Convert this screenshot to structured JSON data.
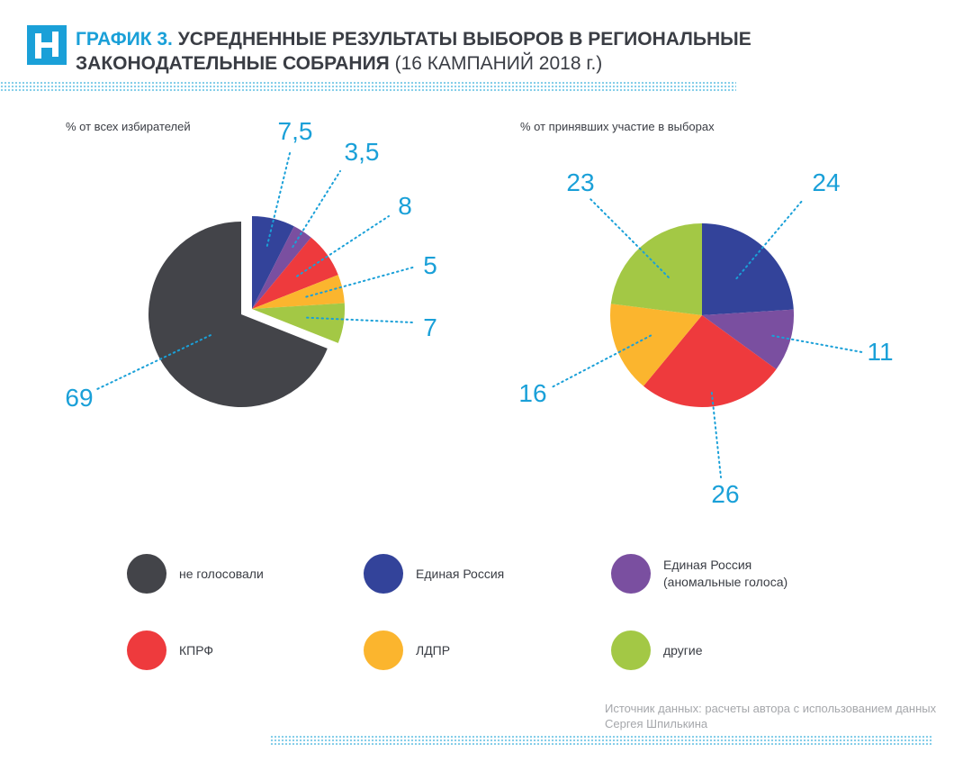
{
  "header": {
    "accent": "ГРАФИК 3.",
    "title": " УСРЕДНЕННЫЕ РЕЗУЛЬТАТЫ ВЫБОРОВ В РЕГИОНАЛЬНЫЕ ЗАКОНОДАТЕЛЬНЫЕ СОБРАНИЯ",
    "light": " (16 КАМПАНИЙ 2018 г.)"
  },
  "colors": {
    "accent": "#1aa0d8",
    "text": "#3a3d44",
    "none": "#434449",
    "er": "#33439a",
    "er_anom": "#7a4fa0",
    "kprf": "#ee3a3d",
    "ldpr": "#fbb52e",
    "other": "#a3c845"
  },
  "legend": [
    {
      "key": "none",
      "label": "не голосовали",
      "color": "#434449"
    },
    {
      "key": "er",
      "label": "Единая Россия",
      "color": "#33439a"
    },
    {
      "key": "er_anom",
      "label": "Единая Россия (аномальные голоса)",
      "color": "#7a4fa0"
    },
    {
      "key": "kprf",
      "label": "КПРФ",
      "color": "#ee3a3d"
    },
    {
      "key": "ldpr",
      "label": "ЛДПР",
      "color": "#fbb52e"
    },
    {
      "key": "other",
      "label": "другие",
      "color": "#a3c845"
    }
  ],
  "chart_data": [
    {
      "type": "pie",
      "title": "% от всех избирателей",
      "categories": [
        "не голосовали",
        "Единая Россия",
        "Единая Россия (аномальные голоса)",
        "КПРФ",
        "ЛДПР",
        "другие"
      ],
      "values": [
        69,
        7.5,
        3.5,
        8,
        5,
        7
      ],
      "labels": [
        "69",
        "7,5",
        "3,5",
        "8",
        "5",
        "7"
      ],
      "colors": [
        "#434449",
        "#33439a",
        "#7a4fa0",
        "#ee3a3d",
        "#fbb52e",
        "#a3c845"
      ],
      "exploded": "voters"
    },
    {
      "type": "pie",
      "title": "% от принявших участие в выборах",
      "categories": [
        "Единая Россия",
        "Единая Россия (аномальные голоса)",
        "КПРФ",
        "ЛДПР",
        "другие"
      ],
      "values": [
        24,
        11,
        26,
        16,
        23
      ],
      "labels": [
        "24",
        "11",
        "26",
        "16",
        "23"
      ],
      "colors": [
        "#33439a",
        "#7a4fa0",
        "#ee3a3d",
        "#fbb52e",
        "#a3c845"
      ]
    }
  ],
  "source": "Источник данных: расчеты автора с использованием данных Сергея Шпилькина"
}
